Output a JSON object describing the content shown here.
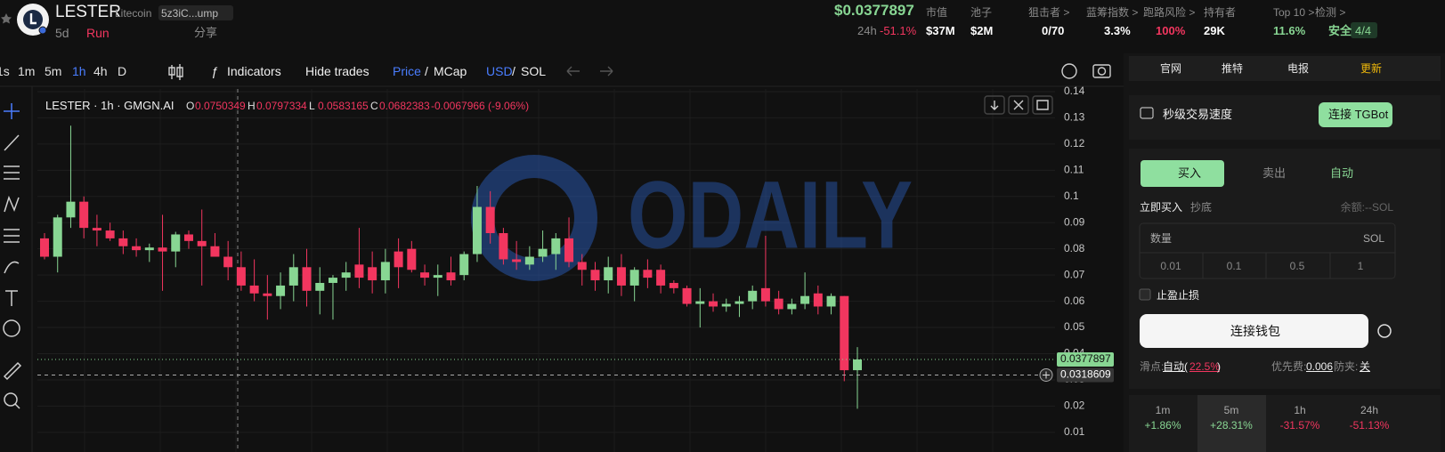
{
  "header": {
    "symbol": "LESTER",
    "chain": "Litecoin",
    "address": "5z3iC...ump",
    "age": "5d",
    "tag": "Run",
    "share": "分享",
    "price": "$0.0377897",
    "change_label": "24h",
    "change": "-51.1%",
    "metrics": [
      {
        "label": "市值",
        "value": "$37M",
        "color": "#ffffff"
      },
      {
        "label": "池子",
        "value": "$2M",
        "color": "#ffffff"
      },
      {
        "label": "狙击者 >",
        "value": "0/70",
        "color": "#ffffff"
      },
      {
        "label": "蓝筹指数 >",
        "value": "3.3%",
        "color": "#ffffff"
      },
      {
        "label": "跑路风险 >",
        "value": "100%",
        "color": "#f2365f"
      },
      {
        "label": "持有者",
        "value": "29K",
        "color": "#ffffff"
      },
      {
        "label": "Top 10 >",
        "value": "11.6%",
        "color": "#88d693"
      },
      {
        "label": "检测 >",
        "value": "安全",
        "color": "#88d693"
      }
    ],
    "checks": "4/4"
  },
  "toolbar": {
    "intervals": [
      "1s",
      "1m",
      "5m",
      "1h",
      "4h",
      "D"
    ],
    "active_interval": 3,
    "indicators": "Indicators",
    "hide_trades": "Hide trades",
    "price": "Price",
    "mcap": "MCap",
    "usd": "USD",
    "sol": "SOL",
    "divider": "/"
  },
  "watermark": "ODAILY",
  "chart_data": {
    "type": "candlestick",
    "title": "LESTER · 1h · GMGN.AI",
    "ohlc_legend": [
      {
        "key": "O",
        "value": "0.0750349"
      },
      {
        "key": "H",
        "value": "0.0797334"
      },
      {
        "key": "L",
        "value": "0.0583165"
      },
      {
        "key": "C",
        "value": "0.0682383"
      }
    ],
    "legend_change": "-0.0067966 (-9.06%)",
    "up_color": "#88d693",
    "down_color": "#f2365f",
    "open": [
      0.084,
      0.077,
      0.092,
      0.098,
      0.088,
      0.087,
      0.084,
      0.081,
      0.0795,
      0.0805,
      0.079,
      0.0855,
      0.083,
      0.081,
      0.077,
      0.073,
      0.066,
      0.063,
      0.062,
      0.066,
      0.073,
      0.064,
      0.067,
      0.069,
      0.074,
      0.073,
      0.068,
      0.079,
      0.08,
      0.071,
      0.069,
      0.071,
      0.07,
      0.078,
      0.096,
      0.086,
      0.076,
      0.074,
      0.077,
      0.078,
      0.084,
      0.075,
      0.072,
      0.068,
      0.073,
      0.066,
      0.072,
      0.072,
      0.067,
      0.065,
      0.059,
      0.06,
      0.058,
      0.059,
      0.06,
      0.065,
      0.061,
      0.057,
      0.059,
      0.063,
      0.058,
      0.062,
      0.0337
    ],
    "high": [
      0.086,
      0.093,
      0.127,
      0.1,
      0.093,
      0.09,
      0.087,
      0.084,
      0.082,
      0.093,
      0.0865,
      0.087,
      0.095,
      0.086,
      0.083,
      0.079,
      0.076,
      0.07,
      0.071,
      0.078,
      0.08,
      0.073,
      0.07,
      0.075,
      0.088,
      0.079,
      0.08,
      0.084,
      0.083,
      0.074,
      0.074,
      0.077,
      0.079,
      0.104,
      0.102,
      0.088,
      0.083,
      0.081,
      0.087,
      0.086,
      0.092,
      0.078,
      0.075,
      0.077,
      0.078,
      0.073,
      0.076,
      0.074,
      0.068,
      0.066,
      0.065,
      0.063,
      0.061,
      0.062,
      0.066,
      0.085,
      0.064,
      0.061,
      0.071,
      0.066,
      0.063,
      0.062,
      0.0425
    ],
    "low": [
      0.076,
      0.071,
      0.088,
      0.084,
      0.081,
      0.083,
      0.078,
      0.077,
      0.075,
      0.064,
      0.073,
      0.08,
      0.066,
      0.078,
      0.068,
      0.064,
      0.06,
      0.053,
      0.057,
      0.06,
      0.058,
      0.055,
      0.053,
      0.064,
      0.065,
      0.063,
      0.063,
      0.065,
      0.071,
      0.066,
      0.062,
      0.066,
      0.068,
      0.075,
      0.082,
      0.074,
      0.072,
      0.072,
      0.075,
      0.072,
      0.073,
      0.066,
      0.064,
      0.063,
      0.062,
      0.06,
      0.065,
      0.063,
      0.063,
      0.058,
      0.05,
      0.056,
      0.056,
      0.054,
      0.057,
      0.058,
      0.055,
      0.055,
      0.057,
      0.055,
      0.055,
      0.0295,
      0.019
    ],
    "close": [
      0.077,
      0.092,
      0.098,
      0.088,
      0.087,
      0.084,
      0.081,
      0.0795,
      0.0805,
      0.079,
      0.0855,
      0.083,
      0.081,
      0.077,
      0.073,
      0.066,
      0.063,
      0.062,
      0.066,
      0.073,
      0.064,
      0.067,
      0.069,
      0.071,
      0.069,
      0.068,
      0.075,
      0.073,
      0.072,
      0.069,
      0.07,
      0.068,
      0.078,
      0.096,
      0.086,
      0.076,
      0.075,
      0.077,
      0.08,
      0.084,
      0.075,
      0.072,
      0.068,
      0.073,
      0.066,
      0.072,
      0.069,
      0.066,
      0.065,
      0.059,
      0.06,
      0.058,
      0.059,
      0.06,
      0.064,
      0.06,
      0.057,
      0.059,
      0.062,
      0.058,
      0.062,
      0.0337,
      0.0377897
    ],
    "ylim": [
      0.0086,
      0.141
    ],
    "yticks": [
      0.01,
      0.02,
      0.03,
      0.04,
      0.05,
      0.06,
      0.07,
      0.08,
      0.09,
      0.1,
      0.11,
      0.12,
      0.13,
      0.14
    ],
    "grid": true,
    "last_price": 0.0377897,
    "crosshair": 0.0318609
  },
  "panel": {
    "links": [
      "官网",
      "推特",
      "电报",
      "更新"
    ],
    "speed": "秒级交易速度",
    "tgbot": "连接 TGBot",
    "tabs": [
      "买入",
      "卖出",
      "自动"
    ],
    "modes": [
      "立即买入",
      "抄底"
    ],
    "balance": "余额:--SOL",
    "amount_label": "数量",
    "amount_unit": "SOL",
    "amounts": [
      "0.01",
      "0.1",
      "0.5",
      "1"
    ],
    "tp_sl": "止盈止损",
    "connect": "连接钱包",
    "slippage_label": "滑点:",
    "slippage_mode": "自动(",
    "slippage": "22.5%",
    "slippage_end": ")",
    "priority_label": "优先费:",
    "priority": "0.006",
    "mev_label": "防夹:",
    "mev": "关",
    "stats": [
      {
        "period": "1m",
        "change": "+1.86%",
        "color": "#88d693"
      },
      {
        "period": "5m",
        "change": "+28.31%",
        "color": "#88d693"
      },
      {
        "period": "1h",
        "change": "-31.57%",
        "color": "#f2365f"
      },
      {
        "period": "24h",
        "change": "-51.13%",
        "color": "#f2365f"
      }
    ]
  }
}
